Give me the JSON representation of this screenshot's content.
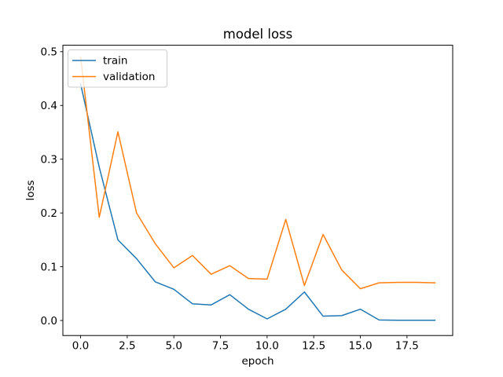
{
  "chart_data": {
    "type": "line",
    "title": "model loss",
    "xlabel": "epoch",
    "ylabel": "loss",
    "x": [
      0,
      1,
      2,
      3,
      4,
      5,
      6,
      7,
      8,
      9,
      10,
      11,
      12,
      13,
      14,
      15,
      16,
      17,
      18,
      19
    ],
    "series": [
      {
        "name": "train",
        "color": "#1f77b4",
        "values": [
          0.44,
          0.285,
          0.15,
          0.115,
          0.072,
          0.058,
          0.031,
          0.029,
          0.048,
          0.021,
          0.003,
          0.021,
          0.053,
          0.008,
          0.009,
          0.021,
          0.001,
          0.0005,
          0.0005,
          0.0005
        ]
      },
      {
        "name": "validation",
        "color": "#ff7f0e",
        "values": [
          0.49,
          0.192,
          0.351,
          0.2,
          0.143,
          0.098,
          0.121,
          0.086,
          0.102,
          0.078,
          0.077,
          0.188,
          0.065,
          0.16,
          0.094,
          0.059,
          0.07,
          0.071,
          0.071,
          0.07
        ]
      }
    ],
    "xlim": [
      -0.95,
      19.95
    ],
    "ylim": [
      -0.028,
      0.512
    ],
    "xticks": [
      0,
      2.5,
      5,
      7.5,
      10,
      12.5,
      15,
      17.5
    ],
    "xtick_labels": [
      "0.0",
      "2.5",
      "5.0",
      "7.5",
      "10.0",
      "12.5",
      "15.0",
      "17.5"
    ],
    "yticks": [
      0,
      0.1,
      0.2,
      0.3,
      0.4,
      0.5
    ],
    "ytick_labels": [
      "0.0",
      "0.1",
      "0.2",
      "0.3",
      "0.4",
      "0.5"
    ],
    "legend": {
      "position": "upper left",
      "entries": [
        "train",
        "validation"
      ]
    },
    "grid": false,
    "axes_color": "#000000",
    "background_color": "#ffffff"
  }
}
